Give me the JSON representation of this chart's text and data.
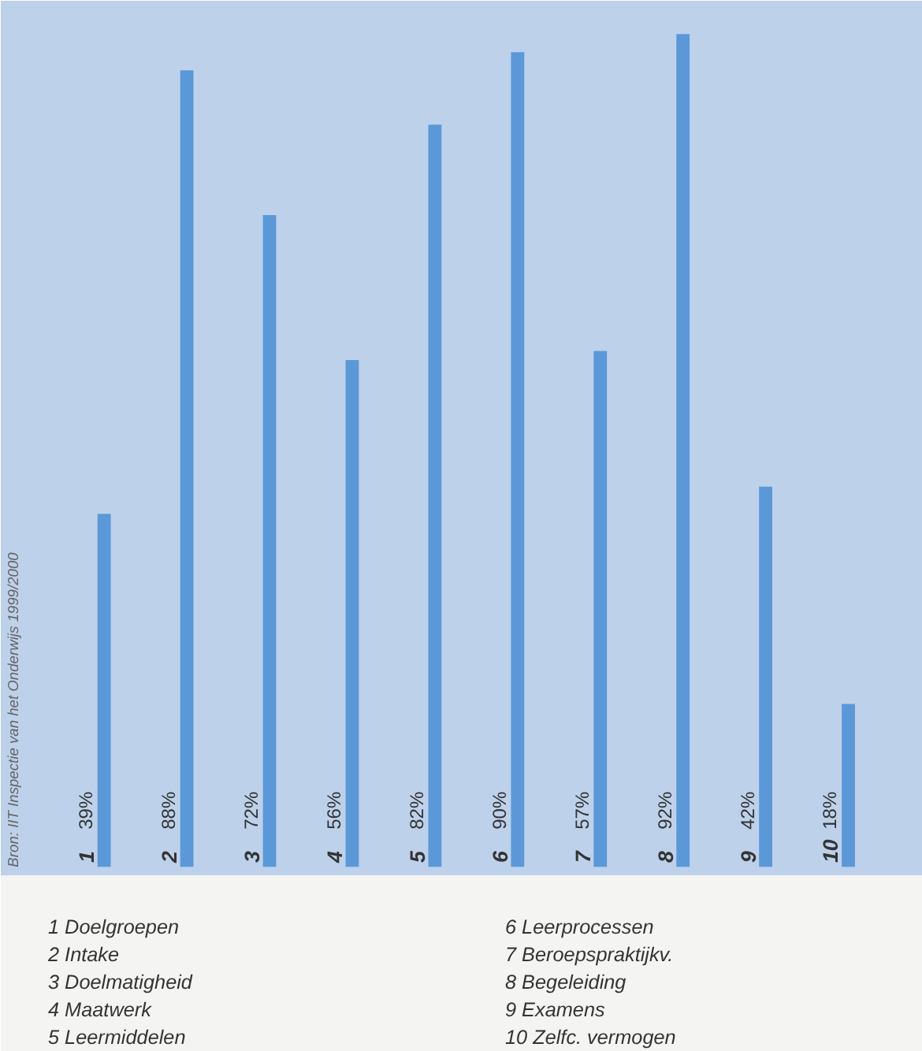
{
  "chart_data": {
    "type": "bar",
    "categories": [
      "1",
      "2",
      "3",
      "4",
      "5",
      "6",
      "7",
      "8",
      "9",
      "10"
    ],
    "values": [
      39,
      88,
      72,
      56,
      82,
      90,
      57,
      92,
      42,
      18
    ],
    "value_labels": [
      "39%",
      "88%",
      "72%",
      "56%",
      "82%",
      "90%",
      "57%",
      "92%",
      "42%",
      "18%"
    ],
    "color": "#5b98d8",
    "annotations": [
      "Bron: IIT Inspectie van het Onderwijs 1999/2000",
      "1 Doelgroepen",
      "2 Intake",
      "3 Doelmatigheid",
      "4 Maatwerk",
      "5 Leermiddelen",
      "6 Leerprocessen",
      "7 Beroepspraktijkv.",
      "8 Begeleiding",
      "9 Examens",
      "10 Zelfc. vermogen"
    ]
  }
}
